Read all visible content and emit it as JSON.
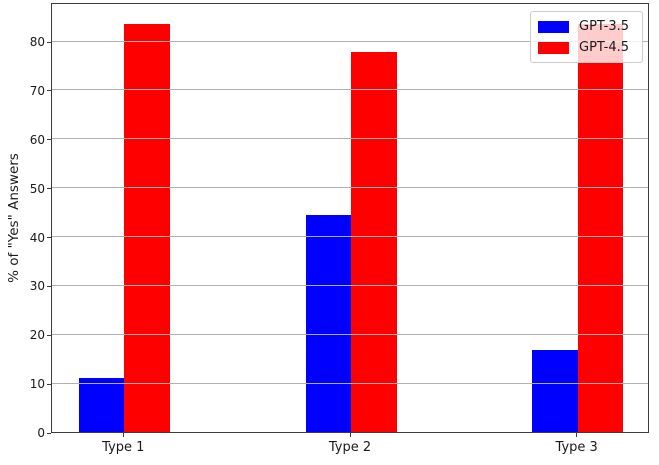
{
  "chart_data": {
    "type": "bar",
    "title": "",
    "categories": [
      "Type 1",
      "Type 2",
      "Type 3"
    ],
    "series": [
      {
        "name": "GPT-3.5",
        "color": "#0000ff",
        "values": [
          11.1,
          44.4,
          16.7
        ]
      },
      {
        "name": "GPT-4.5",
        "color": "#ff0000",
        "values": [
          83.5,
          77.8,
          83.5
        ]
      }
    ],
    "xlabel": "",
    "ylabel": "% of \"Yes\" Answers",
    "yticks": [
      0,
      10,
      20,
      30,
      40,
      50,
      60,
      70,
      80
    ],
    "ylim": [
      0,
      88
    ],
    "grid": "horizontal-over-bars",
    "grid_color": "#b0b0b0",
    "legend_position": "upper right"
  }
}
